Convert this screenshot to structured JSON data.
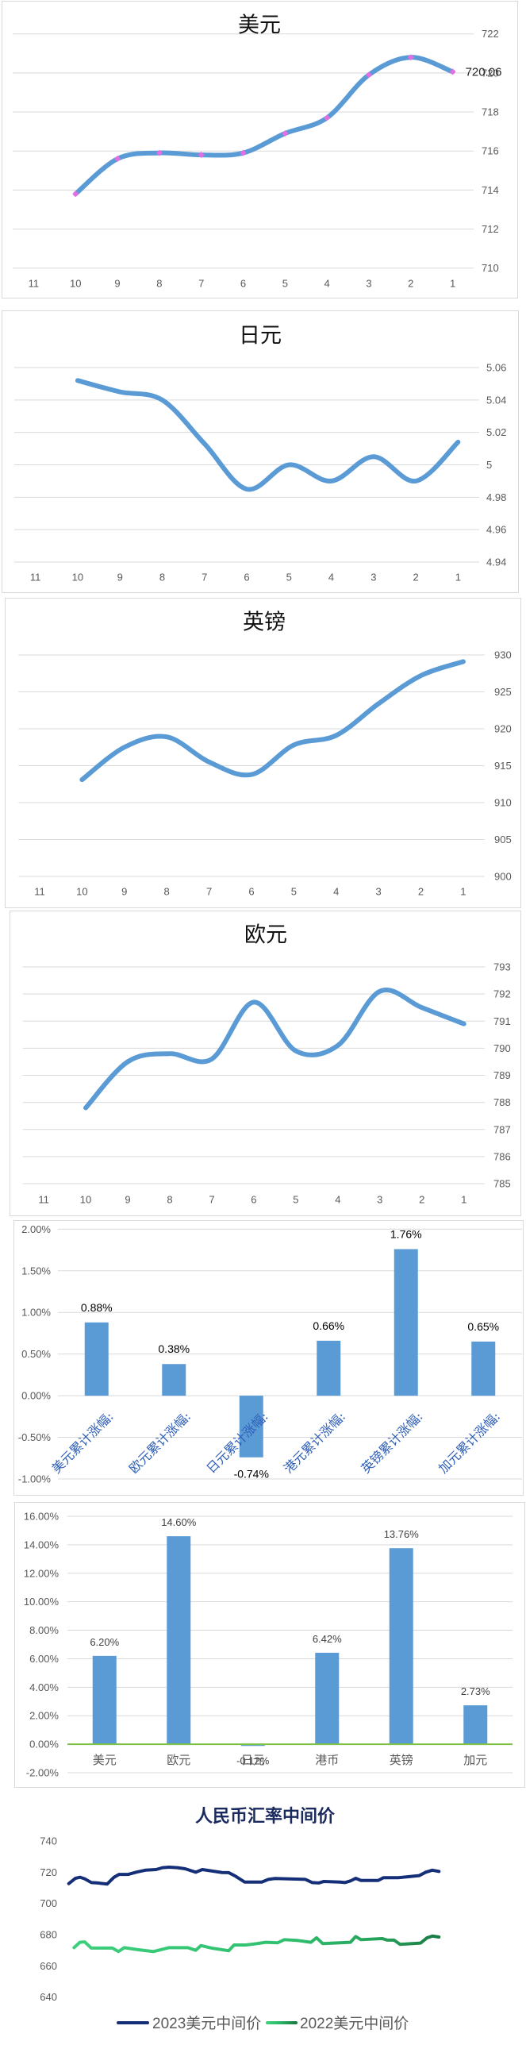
{
  "colors": {
    "background": "#ffffff",
    "chart_border": "#d9d9d9",
    "gridline": "#d9d9d9",
    "axis_text": "#595959",
    "line_blue": "#5b9bd5",
    "marker_pink": "#e46ee4",
    "data_label": "#262626",
    "bar_blue": "#5b9bd5",
    "bar_label_black": "#000000",
    "bar_label_gray": "#404040",
    "category_label_blue": "#2f5fb8",
    "zero_line_green": "#7dc243",
    "title_black": "#111111",
    "title_navy": "#1b2a5e"
  },
  "chart_data": [
    {
      "type": "line",
      "title": "美元",
      "xlabel": "",
      "ylabel": "",
      "smooth": true,
      "markers": true,
      "grid": true,
      "legend": null,
      "categories": [
        "11",
        "10",
        "9",
        "8",
        "7",
        "6",
        "5",
        "4",
        "3",
        "2",
        "1"
      ],
      "values": [
        null,
        713.8,
        715.6,
        715.9,
        715.8,
        715.9,
        716.9,
        717.7,
        719.9,
        720.8,
        720.06
      ],
      "ylim": [
        710,
        722
      ],
      "yticks": [
        {
          "value": 722,
          "label": "722"
        },
        {
          "value": 720,
          "label": "720"
        },
        {
          "value": 718,
          "label": "718"
        },
        {
          "value": 716,
          "label": "716"
        },
        {
          "value": 714,
          "label": "714"
        },
        {
          "value": 712,
          "label": "712"
        },
        {
          "value": 710,
          "label": "710"
        }
      ],
      "data_labels": [
        {
          "index": 10,
          "text": "720.06"
        }
      ]
    },
    {
      "type": "line",
      "title": "日元",
      "xlabel": "",
      "ylabel": "",
      "smooth": true,
      "markers": false,
      "grid": true,
      "legend": null,
      "categories": [
        "11",
        "10",
        "9",
        "8",
        "7",
        "6",
        "5",
        "4",
        "3",
        "2",
        "1"
      ],
      "values": [
        null,
        5.052,
        5.045,
        5.04,
        5.013,
        4.985,
        5.0,
        4.99,
        5.005,
        4.99,
        5.014
      ],
      "ylim": [
        4.94,
        5.06
      ],
      "yticks": [
        {
          "value": 5.06,
          "label": "5.06"
        },
        {
          "value": 5.04,
          "label": "5.04"
        },
        {
          "value": 5.02,
          "label": "5.02"
        },
        {
          "value": 5.0,
          "label": "5"
        },
        {
          "value": 4.98,
          "label": "4.98"
        },
        {
          "value": 4.96,
          "label": "4.96"
        },
        {
          "value": 4.94,
          "label": "4.94"
        }
      ]
    },
    {
      "type": "line",
      "title": "英镑",
      "xlabel": "",
      "ylabel": "",
      "smooth": true,
      "markers": false,
      "grid": true,
      "legend": null,
      "categories": [
        "11",
        "10",
        "9",
        "8",
        "7",
        "6",
        "5",
        "4",
        "3",
        "2",
        "1"
      ],
      "values": [
        null,
        913.1,
        917.5,
        918.9,
        915.5,
        913.8,
        917.8,
        919.1,
        923.4,
        927.2,
        929.1
      ],
      "ylim": [
        900,
        930
      ],
      "yticks": [
        {
          "value": 930,
          "label": "930"
        },
        {
          "value": 925,
          "label": "925"
        },
        {
          "value": 920,
          "label": "920"
        },
        {
          "value": 915,
          "label": "915"
        },
        {
          "value": 910,
          "label": "910"
        },
        {
          "value": 905,
          "label": "905"
        },
        {
          "value": 900,
          "label": "900"
        }
      ]
    },
    {
      "type": "line",
      "title": "欧元",
      "xlabel": "",
      "ylabel": "",
      "smooth": true,
      "markers": false,
      "grid": true,
      "legend": null,
      "categories": [
        "11",
        "10",
        "9",
        "8",
        "7",
        "6",
        "5",
        "4",
        "3",
        "2",
        "1"
      ],
      "values": [
        null,
        787.8,
        789.5,
        789.8,
        789.6,
        791.7,
        789.9,
        790.1,
        792.1,
        791.5,
        790.9
      ],
      "ylim": [
        785,
        793
      ],
      "yticks": [
        {
          "value": 793,
          "label": "793"
        },
        {
          "value": 792,
          "label": "792"
        },
        {
          "value": 791,
          "label": "791"
        },
        {
          "value": 790,
          "label": "790"
        },
        {
          "value": 789,
          "label": "789"
        },
        {
          "value": 788,
          "label": "788"
        },
        {
          "value": 787,
          "label": "787"
        },
        {
          "value": 786,
          "label": "786"
        },
        {
          "value": 785,
          "label": "785"
        }
      ]
    },
    {
      "type": "bar",
      "title": "",
      "xlabel": "",
      "ylabel": "",
      "grid": true,
      "legend": null,
      "categories": [
        "美元累计涨幅:",
        "欧元累计涨幅:",
        "日元累计涨幅:",
        "港元累计涨幅:",
        "英镑累计涨幅:",
        "加元累计涨幅:"
      ],
      "values": [
        0.88,
        0.38,
        -0.74,
        0.66,
        1.76,
        0.65
      ],
      "value_labels": [
        "0.88%",
        "0.38%",
        "-0.74%",
        "0.66%",
        "1.76%",
        "0.65%"
      ],
      "value_unit": "%",
      "ylim": [
        -1.0,
        2.0
      ],
      "yticks": [
        {
          "value": 2.0,
          "label": "2.00%"
        },
        {
          "value": 1.5,
          "label": "1.50%"
        },
        {
          "value": 1.0,
          "label": "1.00%"
        },
        {
          "value": 0.5,
          "label": "0.50%"
        },
        {
          "value": 0.0,
          "label": "0.00%"
        },
        {
          "value": -0.5,
          "label": "-0.50%"
        },
        {
          "value": -1.0,
          "label": "-1.00%"
        }
      ]
    },
    {
      "type": "bar",
      "title": "",
      "xlabel": "",
      "ylabel": "",
      "grid": true,
      "legend": null,
      "categories": [
        "美元",
        "欧元",
        "日元",
        "港币",
        "英镑",
        "加元"
      ],
      "values": [
        6.2,
        14.6,
        -0.12,
        6.42,
        13.76,
        2.73
      ],
      "value_labels": [
        "6.20%",
        "14.60%",
        "-0.12%",
        "6.42%",
        "13.76%",
        "2.73%"
      ],
      "value_unit": "%",
      "ylim": [
        -2.0,
        16.0
      ],
      "yticks": [
        {
          "value": 16,
          "label": "16.00%"
        },
        {
          "value": 14,
          "label": "14.00%"
        },
        {
          "value": 12,
          "label": "12.00%"
        },
        {
          "value": 10,
          "label": "10.00%"
        },
        {
          "value": 8,
          "label": "8.00%"
        },
        {
          "value": 6,
          "label": "6.00%"
        },
        {
          "value": 4,
          "label": "4.00%"
        },
        {
          "value": 2,
          "label": "2.00%"
        },
        {
          "value": 0,
          "label": "0.00%"
        },
        {
          "value": -2,
          "label": "-2.00%"
        }
      ]
    },
    {
      "type": "line",
      "title": "人民币汇率中间价",
      "xlabel": "",
      "ylabel": "",
      "grid": false,
      "legend": {
        "position": "bottom"
      },
      "ylim": [
        640,
        740
      ],
      "yticks": [
        {
          "value": 740,
          "label": "740"
        },
        {
          "value": 720,
          "label": "720"
        },
        {
          "value": 700,
          "label": "700"
        },
        {
          "value": 680,
          "label": "680"
        },
        {
          "value": 660,
          "label": "660"
        },
        {
          "value": 640,
          "label": "640"
        }
      ],
      "series": [
        {
          "name": "2023美元中间价",
          "color": "#142f78",
          "x": [
            0,
            1.78,
            3.0,
            4.29,
            6.07,
            7.84,
            10.35,
            12.13,
            13.56,
            16.07,
            18.22,
            20.7,
            23.57,
            25.35,
            27.13,
            29.28,
            31.42,
            34.29,
            36.07,
            38.58,
            41.43,
            43.21,
            45.01,
            47.49,
            52.14,
            53.92,
            55.72,
            63.93,
            65.71,
            67.51,
            68.92,
            73.21,
            74.65,
            76.08,
            77.5,
            78.93,
            83.58,
            85.0,
            88.94,
            91.79,
            94.64,
            96.44,
            98.22,
            100
          ],
          "values": [
            712.7,
            716.1,
            716.8,
            715.8,
            713.4,
            713.1,
            712.4,
            716.6,
            718.6,
            718.6,
            720.0,
            721.3,
            721.7,
            722.9,
            723.2,
            722.9,
            722.2,
            720.0,
            721.7,
            720.8,
            719.8,
            719.7,
            717.5,
            713.7,
            713.7,
            715.4,
            716.0,
            715.4,
            713.4,
            713.1,
            714.1,
            713.7,
            713.4,
            714.4,
            716.1,
            714.7,
            714.7,
            716.5,
            716.5,
            717.1,
            717.8,
            720.0,
            721.3,
            720.5
          ]
        },
        {
          "name": "2022美元中间价",
          "color": "#2fbf6e",
          "gradient": [
            "#3dd07c",
            "#2fbf6e",
            "#24a058",
            "#1b7a45"
          ],
          "x": [
            1.41,
            3.0,
            4.29,
            6.07,
            11.79,
            13.42,
            15.0,
            18.56,
            22.85,
            27.13,
            32.15,
            34.29,
            35.71,
            38.58,
            43.21,
            44.64,
            47.86,
            50.0,
            53.21,
            56.43,
            58.21,
            61.79,
            65.37,
            66.93,
            68.58,
            76.08,
            77.5,
            78.93,
            84.65,
            86.07,
            87.87,
            89.5,
            95.01,
            96.79,
            98.22,
            100
          ],
          "values": [
            671.7,
            675.1,
            675.4,
            671.4,
            671.4,
            669.2,
            671.7,
            670.4,
            669.2,
            671.7,
            671.7,
            670.0,
            673.0,
            671.4,
            669.7,
            673.4,
            673.4,
            674.0,
            675.1,
            674.8,
            676.8,
            676.3,
            675.1,
            678.0,
            674.3,
            675.1,
            678.8,
            676.8,
            677.5,
            676.5,
            676.5,
            673.8,
            674.6,
            678.0,
            679.1,
            678.5
          ]
        }
      ]
    }
  ]
}
